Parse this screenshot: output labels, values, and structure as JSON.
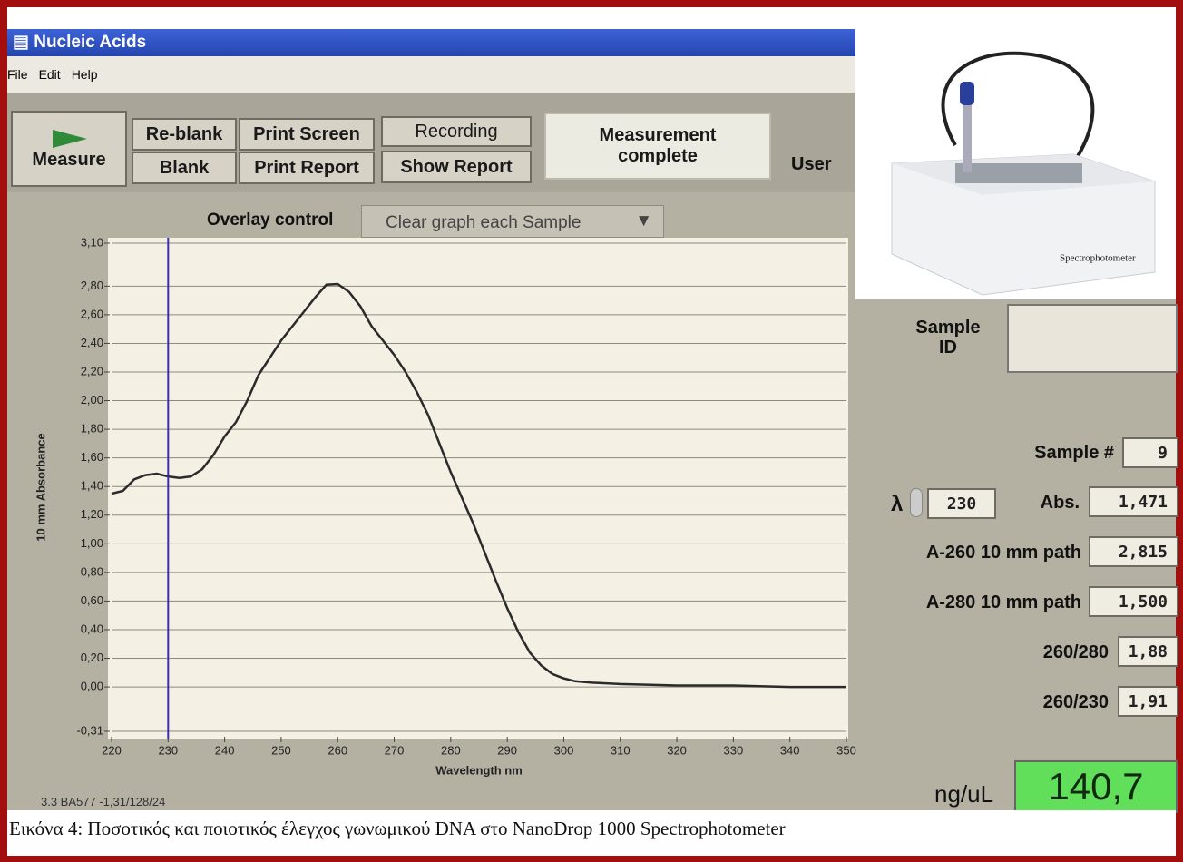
{
  "window": {
    "title": "Nucleic Acids",
    "menu": [
      "File",
      "Edit",
      "Help"
    ]
  },
  "toolbar": {
    "measure": "Measure",
    "buttons": [
      "Re-blank",
      "Print Screen",
      "Recording",
      "Blank",
      "Print Report",
      "Show Report"
    ],
    "status": "Measurement complete",
    "user": "User"
  },
  "overlay": {
    "label": "Overlay control",
    "selection": "Clear graph each Sample"
  },
  "device_image": {
    "label": "Spectrophotometer"
  },
  "sample": {
    "id_label": "Sample ID",
    "number_label": "Sample #",
    "number": 9
  },
  "results": {
    "lambda_symbol": "λ",
    "lambda": 230,
    "rows": [
      {
        "label": "Abs.",
        "value": "1,471"
      },
      {
        "label": "A-260 10 mm path",
        "value": "2,815"
      },
      {
        "label": "A-280 10 mm path",
        "value": "1,500"
      },
      {
        "label": "260/280",
        "value": "1,88"
      },
      {
        "label": "260/230",
        "value": "1,91"
      }
    ],
    "conc_label": "ng/uL",
    "conc": "140,7"
  },
  "footer": "3.3 BA577 -1,31/128/24",
  "caption": "Εικόνα 4: Ποσοτικός και ποιοτικός έλεγχος γωνωμικού DNA στο NanoDrop 1000 Spectrophotometer",
  "chart_data": {
    "type": "line",
    "xlabel": "Wavelength nm",
    "ylabel": "10 mm Absorbance",
    "color": "#2b2b2b",
    "grid": true,
    "x": [
      220,
      222,
      224,
      226,
      228,
      230,
      232,
      234,
      236,
      238,
      240,
      242,
      244,
      246,
      248,
      250,
      252,
      254,
      256,
      258,
      260,
      262,
      264,
      266,
      268,
      270,
      272,
      274,
      276,
      278,
      280,
      282,
      284,
      286,
      288,
      290,
      292,
      294,
      296,
      298,
      300,
      302,
      305,
      310,
      320,
      330,
      340,
      350
    ],
    "values": [
      1.35,
      1.37,
      1.45,
      1.48,
      1.49,
      1.47,
      1.46,
      1.47,
      1.52,
      1.62,
      1.75,
      1.85,
      2.0,
      2.18,
      2.3,
      2.42,
      2.52,
      2.62,
      2.72,
      2.81,
      2.815,
      2.76,
      2.66,
      2.52,
      2.42,
      2.32,
      2.2,
      2.06,
      1.9,
      1.7,
      1.5,
      1.32,
      1.14,
      0.94,
      0.74,
      0.55,
      0.38,
      0.24,
      0.15,
      0.09,
      0.06,
      0.04,
      0.03,
      0.02,
      0.01,
      0.01,
      0.0,
      0.0
    ],
    "xlim": [
      220,
      350
    ],
    "ylim": [
      -0.31,
      3.1
    ],
    "xticks": [
      220,
      230,
      240,
      250,
      260,
      270,
      280,
      290,
      300,
      310,
      320,
      330,
      340,
      350
    ],
    "yticks": [
      {
        "value": -0.31,
        "label": "-0,31"
      },
      {
        "value": 0,
        "label": "0,00"
      },
      {
        "value": 0.2,
        "label": "0,20"
      },
      {
        "value": 0.4,
        "label": "0,40"
      },
      {
        "value": 0.6,
        "label": "0,60"
      },
      {
        "value": 0.8,
        "label": "0,80"
      },
      {
        "value": 1.0,
        "label": "1,00"
      },
      {
        "value": 1.2,
        "label": "1,20"
      },
      {
        "value": 1.4,
        "label": "1,40"
      },
      {
        "value": 1.6,
        "label": "1,60"
      },
      {
        "value": 1.8,
        "label": "1,80"
      },
      {
        "value": 2.0,
        "label": "2,00"
      },
      {
        "value": 2.2,
        "label": "2,20"
      },
      {
        "value": 2.4,
        "label": "2,40"
      },
      {
        "value": 2.6,
        "label": "2,60"
      },
      {
        "value": 2.8,
        "label": "2,80"
      },
      {
        "value": 3.1,
        "label": "3,10"
      }
    ]
  }
}
